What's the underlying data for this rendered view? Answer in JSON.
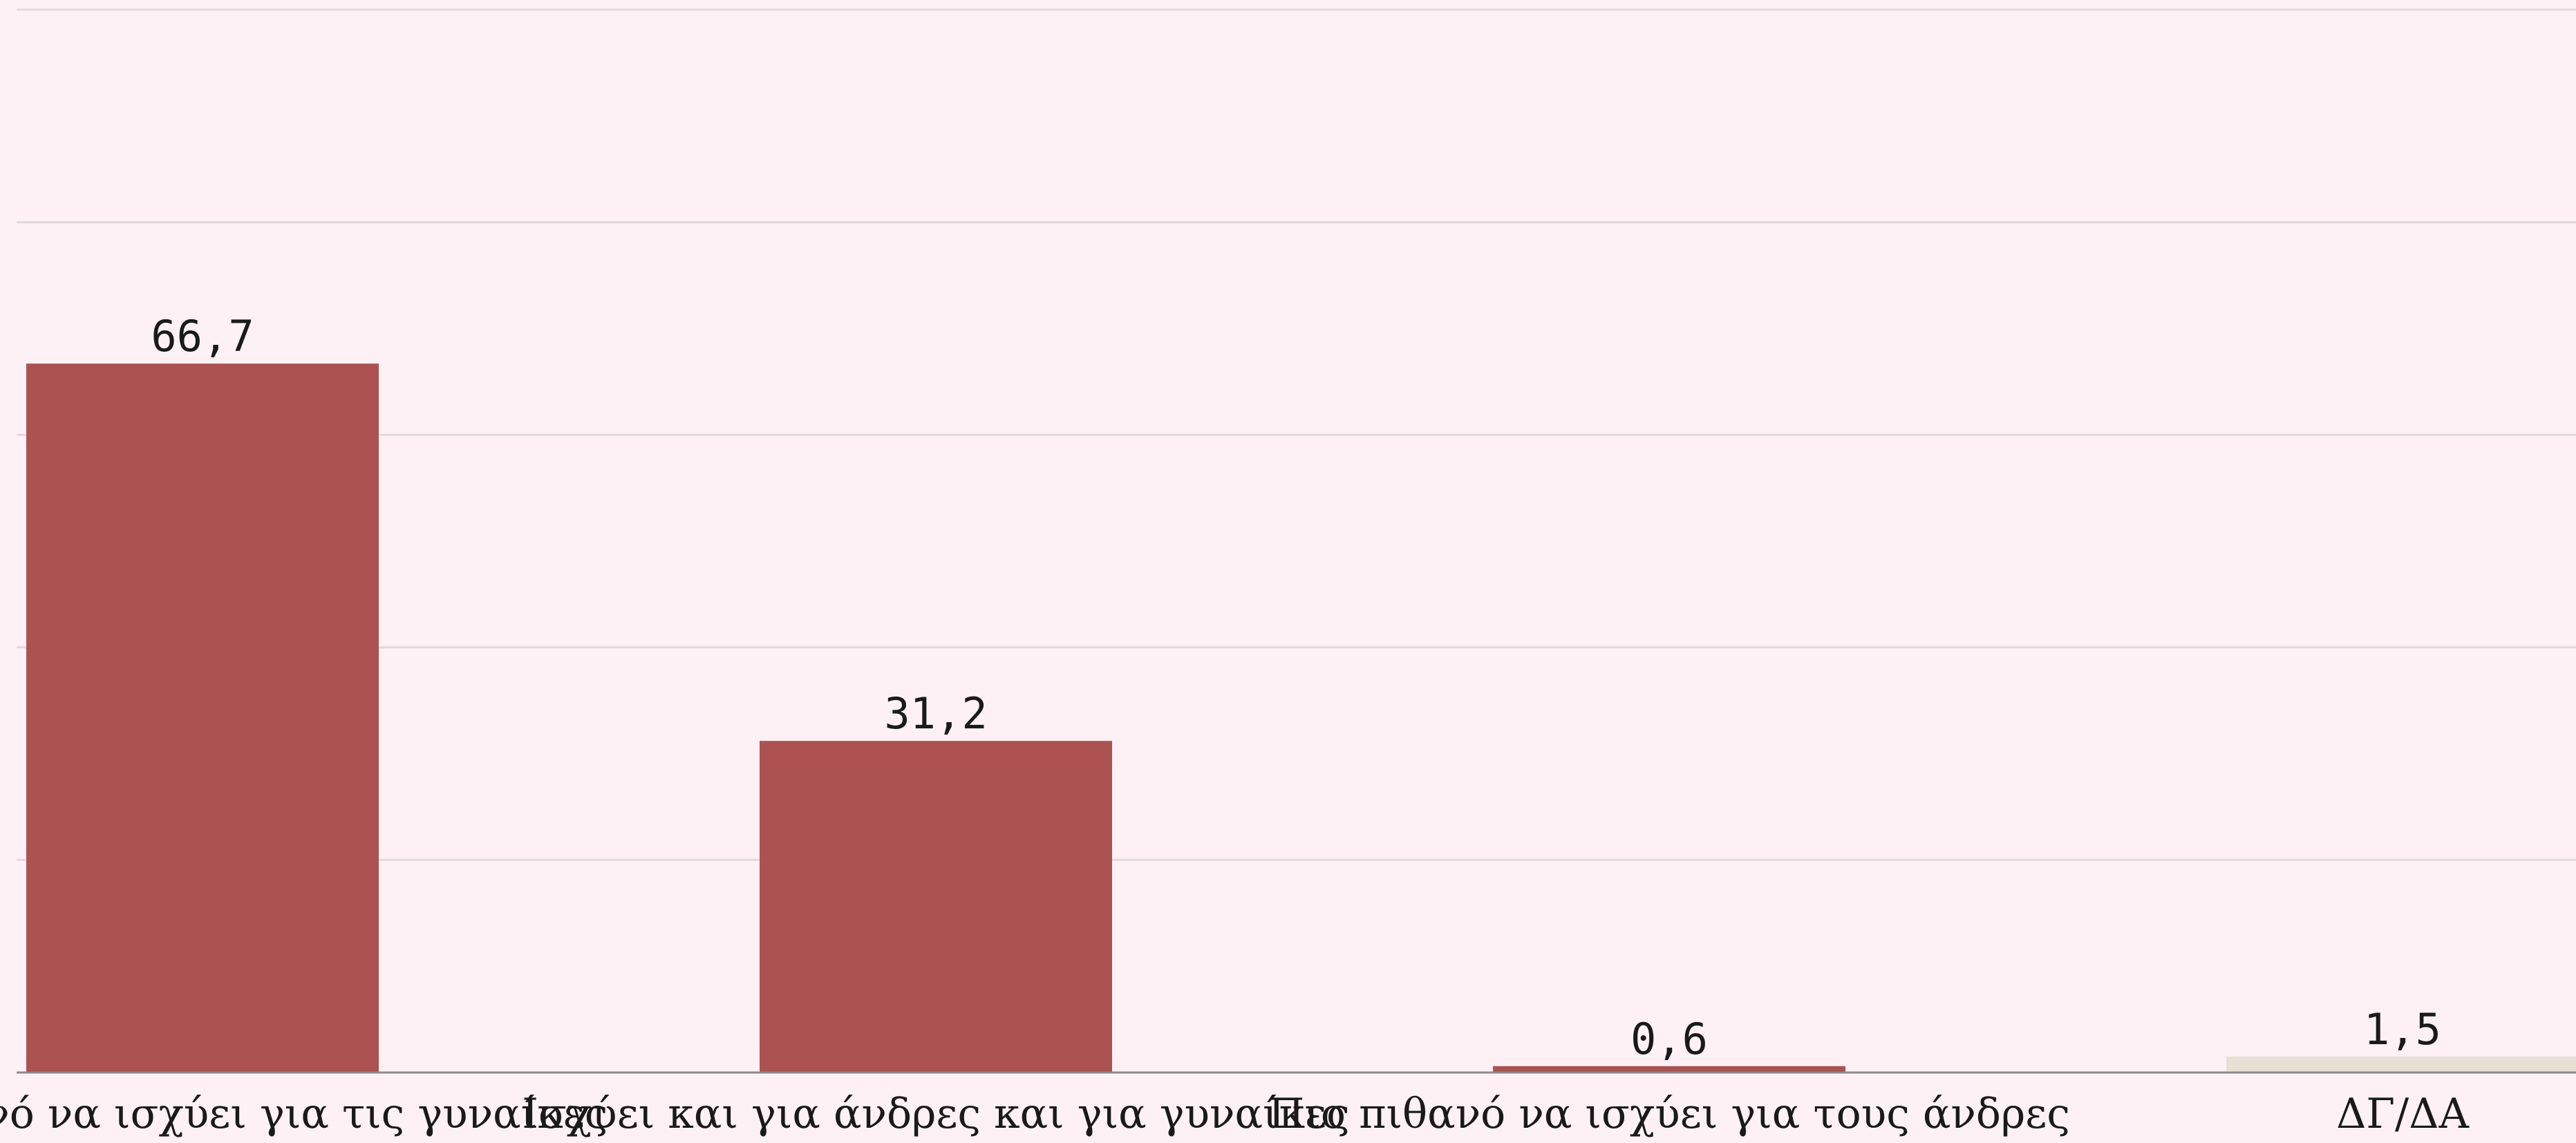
{
  "chart_data": {
    "type": "bar",
    "categories": [
      "Πιο πιθανό να ισχύει για τις γυναίκες",
      "Ισχύει και για άνδρες και για γυναίκες",
      "Πιο πιθανό να ισχύει για τους άνδρες",
      "ΔΓ/ΔΑ"
    ],
    "values": [
      66.7,
      31.2,
      0.6,
      1.5
    ],
    "value_labels": [
      "66,7",
      "31,2",
      "0,6",
      "1,5"
    ],
    "ylim": [
      0,
      100
    ],
    "gridlines": [
      0,
      20,
      40,
      60,
      80,
      100
    ],
    "grid": true,
    "legend": "none",
    "colors": {
      "bar": "#ac5250",
      "bar_dk": "#e9e0d5",
      "grid": "#e0d9de",
      "axis": "#8a8a8a",
      "background": "#fdf1f5"
    }
  }
}
